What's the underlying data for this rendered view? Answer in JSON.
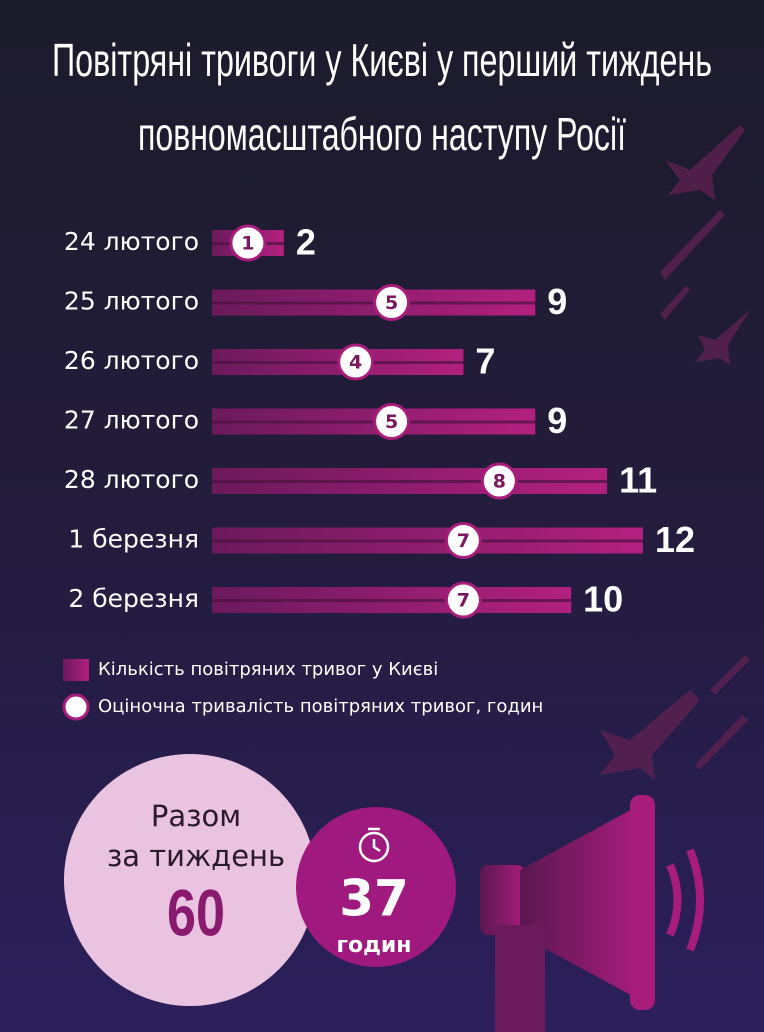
{
  "chart_data": {
    "type": "bar",
    "title": [
      "Повітряні тривоги у Києві у перший тиждень",
      "повномасштабного наступу Росії"
    ],
    "categories": [
      "24 лютого",
      "25 лютого",
      "26 лютого",
      "27 лютого",
      "28 лютого",
      "1 березня",
      "2 березня"
    ],
    "series": [
      {
        "name": "Кількість повітряних тривог у Києві",
        "color": "#b3207f",
        "values": [
          2,
          9,
          7,
          9,
          11,
          12,
          10
        ]
      },
      {
        "name": "Оціночна тривалість повітряних тривог, годин",
        "color": "#ffffff",
        "values": [
          1,
          5,
          4,
          5,
          8,
          7,
          7
        ]
      }
    ],
    "total_label": [
      "Разом",
      "за тиждень"
    ],
    "total": 60,
    "duration_total": 37,
    "duration_unit": "годин"
  }
}
